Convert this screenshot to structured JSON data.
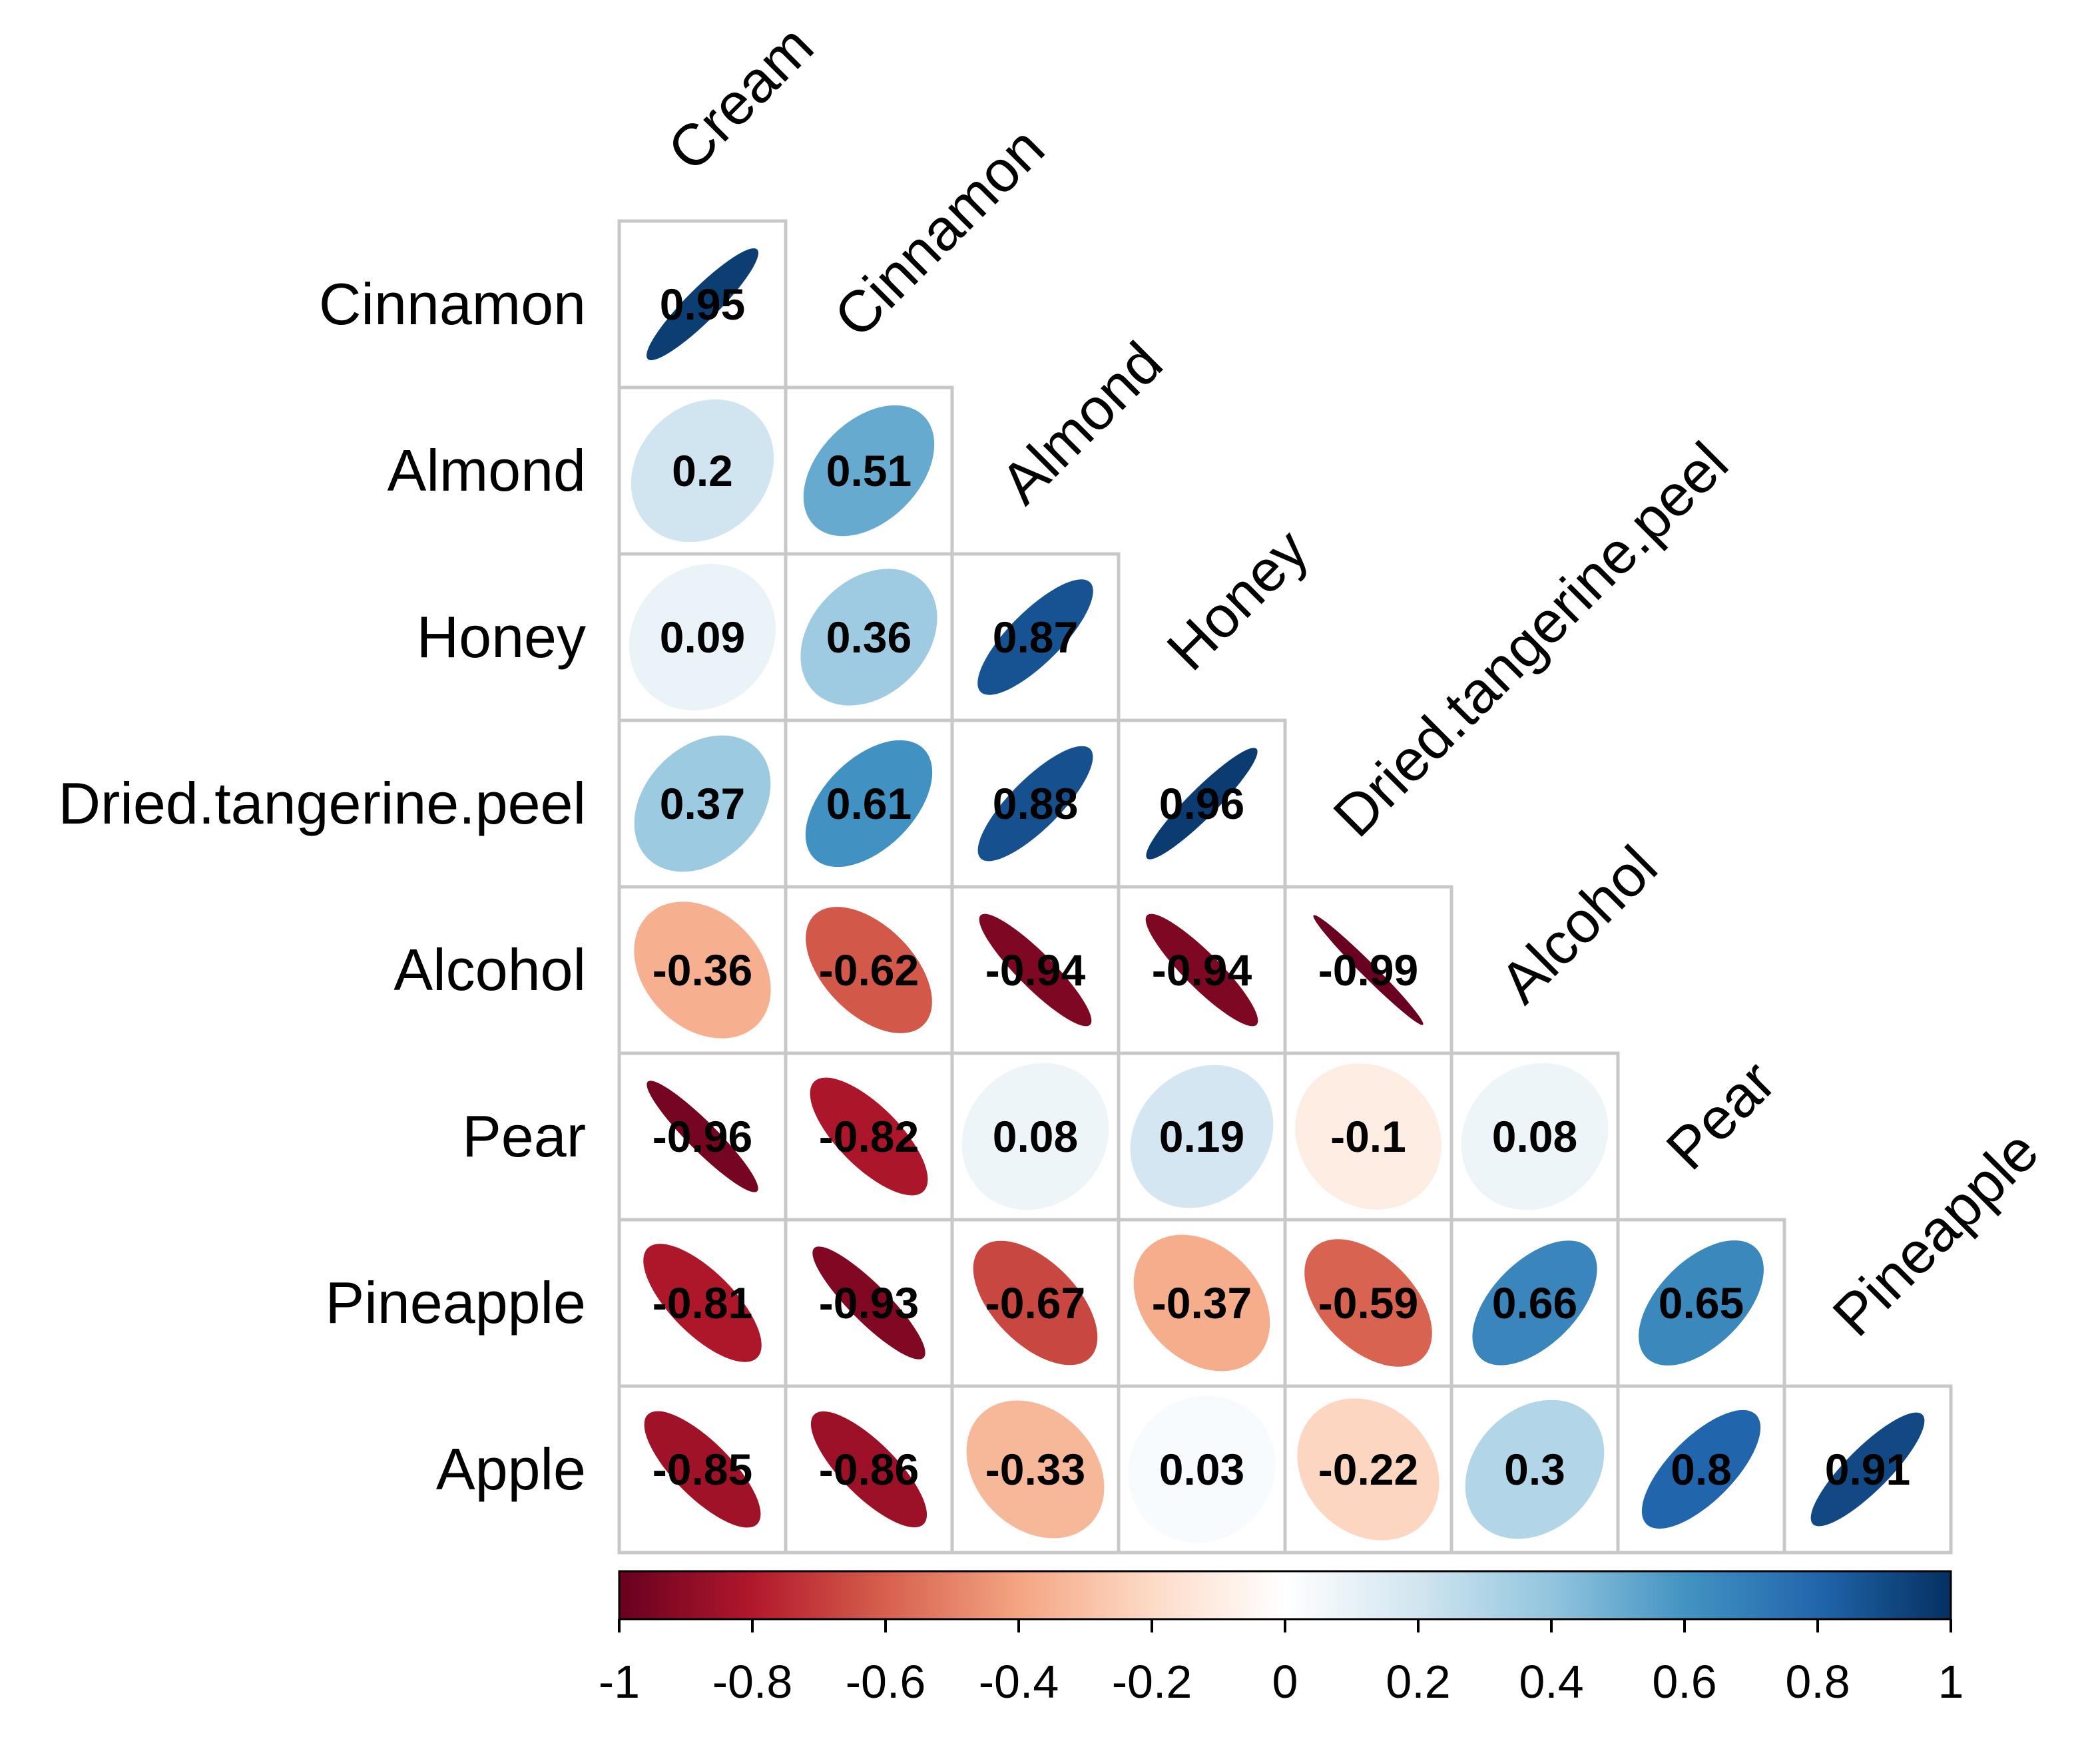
{
  "chart_data": {
    "type": "heatmap",
    "style": "correlation-ellipse-lower-triangle",
    "variables": [
      "Cream",
      "Cinnamon",
      "Almond",
      "Honey",
      "Dried.tangerine.peel",
      "Alcohol",
      "Pear",
      "Pineapple",
      "Apple"
    ],
    "row_labels": [
      "Cinnamon",
      "Almond",
      "Honey",
      "Dried.tangerine.peel",
      "Alcohol",
      "Pear",
      "Pineapple",
      "Apple"
    ],
    "column_labels": [
      "Cream",
      "Cinnamon",
      "Almond",
      "Honey",
      "Dried.tangerine.peel",
      "Alcohol",
      "Pear",
      "Pineapple"
    ],
    "rows": [
      {
        "name": "Cinnamon",
        "values": [
          0.95
        ]
      },
      {
        "name": "Almond",
        "values": [
          0.2,
          0.51
        ]
      },
      {
        "name": "Honey",
        "values": [
          0.09,
          0.36,
          0.87
        ]
      },
      {
        "name": "Dried.tangerine.peel",
        "values": [
          0.37,
          0.61,
          0.88,
          0.96
        ]
      },
      {
        "name": "Alcohol",
        "values": [
          -0.36,
          -0.62,
          -0.94,
          -0.94,
          -0.99
        ]
      },
      {
        "name": "Pear",
        "values": [
          -0.96,
          -0.82,
          0.08,
          0.19,
          -0.1,
          0.08
        ]
      },
      {
        "name": "Pineapple",
        "values": [
          -0.81,
          -0.93,
          -0.67,
          -0.37,
          -0.59,
          0.66,
          0.65
        ]
      },
      {
        "name": "Apple",
        "values": [
          -0.85,
          -0.86,
          -0.33,
          0.03,
          -0.22,
          0.3,
          0.8,
          0.91
        ]
      }
    ],
    "colorbar": {
      "range": [
        -1,
        1
      ],
      "ticks": [
        "-1",
        "-0.8",
        "-0.6",
        "-0.4",
        "-0.2",
        "0",
        "0.2",
        "0.4",
        "0.6",
        "0.8",
        "1"
      ],
      "colors": [
        "#67001F",
        "#B2182B",
        "#D6604D",
        "#F4A582",
        "#FDDBC7",
        "#FFFFFF",
        "#D1E5F0",
        "#92C5DE",
        "#4393C3",
        "#2166AC",
        "#053061"
      ]
    }
  }
}
